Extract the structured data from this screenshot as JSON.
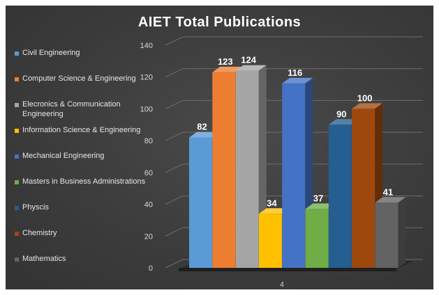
{
  "chart_data": {
    "type": "bar",
    "title": "AIET Total Publications",
    "categories": [
      "4"
    ],
    "ylim": [
      0,
      140
    ],
    "yticks": [
      0,
      20,
      40,
      60,
      80,
      100,
      120,
      140
    ],
    "grid": true,
    "legend_position": "left",
    "series": [
      {
        "name": "Civil Engineering",
        "values": [
          82
        ],
        "color": "#5b9bd5"
      },
      {
        "name": "Computer Science & Engineering",
        "values": [
          123
        ],
        "color": "#ed7d31"
      },
      {
        "name": "Elecronics & Communication Engineering",
        "values": [
          124
        ],
        "color": "#a5a5a5"
      },
      {
        "name": "Information Science & Engineering",
        "values": [
          34
        ],
        "color": "#ffc000"
      },
      {
        "name": "Mechanical Engineering",
        "values": [
          116
        ],
        "color": "#4472c4"
      },
      {
        "name": "Masters in Business Administrations",
        "values": [
          37
        ],
        "color": "#70ad47"
      },
      {
        "name": "Physcis",
        "values": [
          90
        ],
        "color": "#255e91"
      },
      {
        "name": "Chemistry",
        "values": [
          100
        ],
        "color": "#9e480e"
      },
      {
        "name": "Mathematics",
        "values": [
          41
        ],
        "color": "#636363"
      }
    ]
  }
}
